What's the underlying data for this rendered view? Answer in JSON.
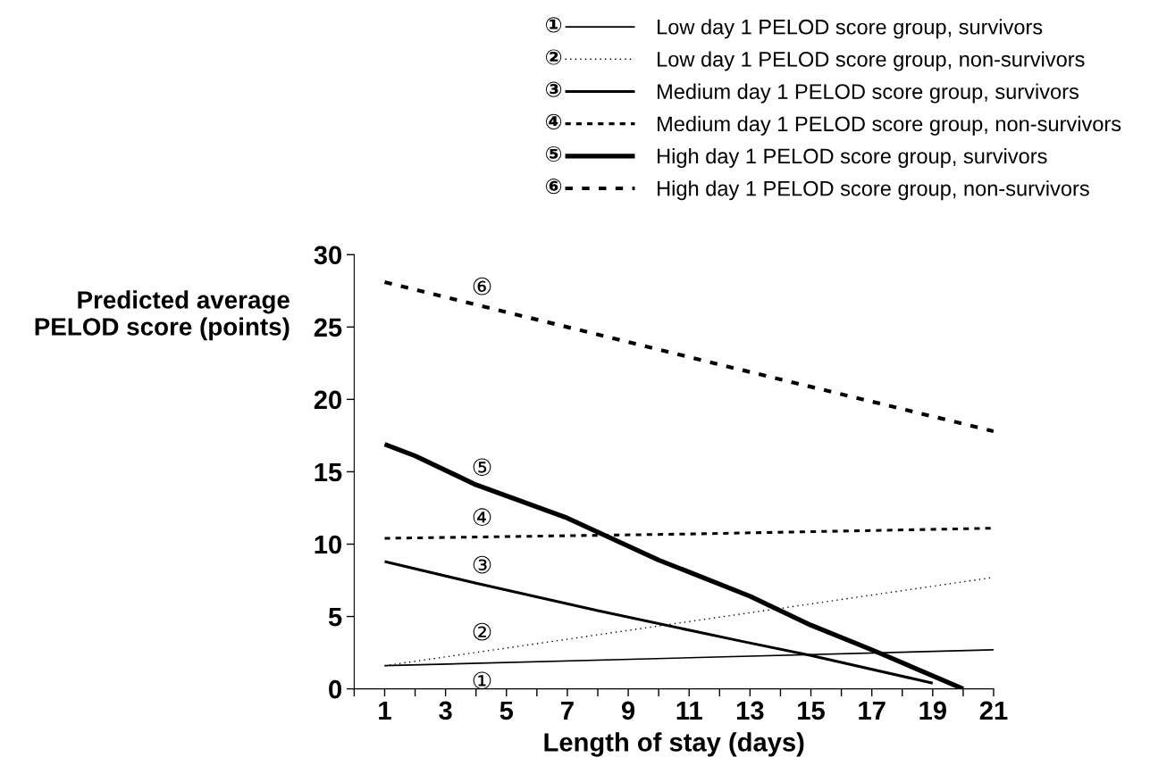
{
  "chart_data": {
    "type": "line",
    "xlabel": "Length of stay (days)",
    "ylabel": "Predicted average\nPELOD score (points)",
    "xlim": [
      0,
      21
    ],
    "ylim": [
      0,
      30
    ],
    "xticks": [
      {
        "value": 0,
        "label": null
      },
      1,
      {
        "value": 2,
        "label": null
      },
      3,
      {
        "value": 4,
        "label": null
      },
      5,
      {
        "value": 6,
        "label": null
      },
      7,
      {
        "value": 8,
        "label": null
      },
      9,
      {
        "value": 10,
        "label": null
      },
      11,
      {
        "value": 12,
        "label": null
      },
      13,
      {
        "value": 14,
        "label": null
      },
      15,
      {
        "value": 16,
        "label": null
      },
      17,
      {
        "value": 18,
        "label": null
      },
      19,
      {
        "value": 20,
        "label": null
      },
      21
    ],
    "yticks": [
      0,
      5,
      10,
      15,
      20,
      25,
      30
    ],
    "grid": false,
    "legend": "top right",
    "marker": "none",
    "series": [
      {
        "name": "Low day 1 PELOD score group, survivors",
        "color": "#000000",
        "line_style": "solid",
        "x": [
          1,
          21
        ],
        "values": [
          1.6,
          2.7
        ]
      },
      {
        "name": "Low day 1 PELOD score group, non-survivors",
        "color": "#000000",
        "line_style": "dotted",
        "x": [
          1,
          21
        ],
        "values": [
          1.6,
          7.7
        ]
      },
      {
        "name": "Medium day 1 PELOD score group, survivors",
        "color": "#000000",
        "line_style": "solid",
        "x": [
          1,
          4,
          8,
          12.7,
          15,
          19
        ],
        "values": [
          8.8,
          7.3,
          5.4,
          3.3,
          2.3,
          0.4
        ]
      },
      {
        "name": "Medium day 1 PELOD score group, non-survivors",
        "color": "#000000",
        "line_style": "dashed",
        "x": [
          1,
          11,
          21
        ],
        "values": [
          10.4,
          10.7,
          11.1
        ]
      },
      {
        "name": "High day 1 PELOD score group, survivors",
        "color": "#000000",
        "line_style": "solid",
        "x": [
          1,
          2,
          4,
          7,
          10,
          13,
          15,
          17,
          20
        ],
        "values": [
          16.9,
          16.1,
          14.1,
          11.8,
          8.9,
          6.4,
          4.4,
          2.7,
          0
        ]
      },
      {
        "name": "High day 1 PELOD score group, non-survivors",
        "color": "#000000",
        "line_style": "dashed",
        "x": [
          1,
          12.4,
          21
        ],
        "values": [
          28.1,
          22.2,
          17.8
        ]
      }
    ],
    "annotations": [
      "①",
      "②",
      "③",
      "④",
      "⑤",
      "⑥"
    ]
  }
}
